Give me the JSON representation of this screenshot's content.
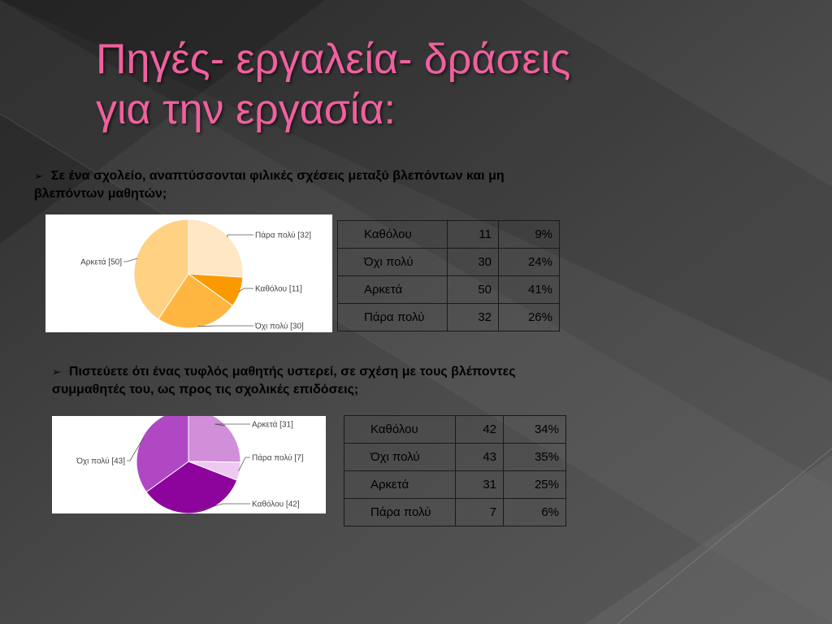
{
  "slide": {
    "title_line1": "Πηγές- εργαλεία- δράσεις",
    "title_line2": "για την εργασία:",
    "bullet_glyph": "➢"
  },
  "question1": {
    "text": "Σε ένα σχολείο, αναπτύσσονται φιλικές σχέσεις μεταξύ βλεπόντων και μη βλεπόντων μαθητών;"
  },
  "question2": {
    "text": "Πιστεύετε ότι ένας τυφλός μαθητής υστερεί, σε σχέση με τους βλέποντες συμμαθητές του, ως προς τις σχολικές επιδόσεις;"
  },
  "table1": {
    "rows": [
      {
        "label": "Καθόλου",
        "count": "11",
        "percent": "9%"
      },
      {
        "label": "Όχι πολύ",
        "count": "30",
        "percent": "24%"
      },
      {
        "label": "Αρκετά",
        "count": "50",
        "percent": "41%"
      },
      {
        "label": "Πάρα πολύ",
        "count": "32",
        "percent": "26%"
      }
    ]
  },
  "table2": {
    "rows": [
      {
        "label": "Καθόλου",
        "count": "42",
        "percent": "34%"
      },
      {
        "label": "Όχι πολύ",
        "count": "43",
        "percent": "35%"
      },
      {
        "label": "Αρκετά",
        "count": "31",
        "percent": "25%"
      },
      {
        "label": "Πάρα πολύ",
        "count": "7",
        "percent": "6%"
      }
    ]
  },
  "chart_data": [
    {
      "type": "pie",
      "title": "",
      "categories": [
        "Πάρα πολύ",
        "Καθόλου",
        "Όχι πολύ",
        "Αρκετά"
      ],
      "values": [
        32,
        11,
        30,
        50
      ],
      "slice_labels": [
        "Πάρα πολύ [32]",
        "Καθόλου [11]",
        "Όχι πολύ [30]",
        "Αρκετά [50]"
      ],
      "colors": [
        "#ffe6c4",
        "#fb9a00",
        "#ffb640",
        "#ffd183"
      ]
    },
    {
      "type": "pie",
      "title": "",
      "categories": [
        "Αρκετά",
        "Πάρα πολύ",
        "Καθόλου",
        "Όχι πολύ"
      ],
      "values": [
        31,
        7,
        42,
        43
      ],
      "slice_labels": [
        "Αρκετά [31]",
        "Πάρα πολύ [7]",
        "Καθόλου [42]",
        "Όχι πολύ [43]"
      ],
      "colors": [
        "#d08fd8",
        "#edc8f1",
        "#8c049c",
        "#b048c4"
      ]
    }
  ]
}
